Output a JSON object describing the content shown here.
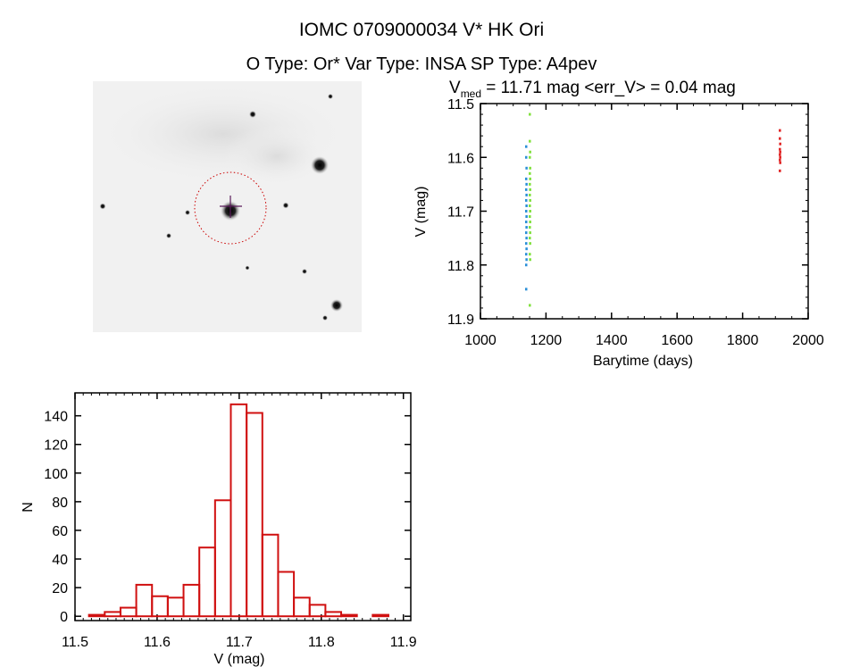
{
  "title_line1": "IOMC 0709000034   V* HK Ori",
  "title_line2": "O Type: Or*  Var Type: INSA  SP Type: A4pev",
  "chart_data": [
    {
      "type": "scatter",
      "title_main": "V",
      "title_sub": "med",
      "title_rest": " = 11.71 mag <err_V> = 0.04 mag",
      "xlabel": "Barytime (days)",
      "ylabel": "V (mag)",
      "xlim": [
        1000,
        2000
      ],
      "ylim": [
        11.5,
        11.9
      ],
      "y_inverted": false,
      "xticks": [
        "1000",
        "1200",
        "1400",
        "1600",
        "1800",
        "2000"
      ],
      "yticks": [
        "11.5",
        "11.6",
        "11.7",
        "11.8",
        "11.9"
      ],
      "series": [
        {
          "name": "blue",
          "color": "#2a8fd8",
          "points": [
            [
              1139,
              11.58
            ],
            [
              1139,
              11.6
            ],
            [
              1140,
              11.62
            ],
            [
              1139,
              11.64
            ],
            [
              1140,
              11.65
            ],
            [
              1139,
              11.66
            ],
            [
              1140,
              11.67
            ],
            [
              1139,
              11.68
            ],
            [
              1140,
              11.69
            ],
            [
              1139,
              11.7
            ],
            [
              1140,
              11.71
            ],
            [
              1139,
              11.72
            ],
            [
              1140,
              11.73
            ],
            [
              1139,
              11.74
            ],
            [
              1140,
              11.75
            ],
            [
              1139,
              11.76
            ],
            [
              1140,
              11.77
            ],
            [
              1139,
              11.78
            ],
            [
              1140,
              11.79
            ],
            [
              1139,
              11.8
            ],
            [
              1139,
              11.845
            ]
          ]
        },
        {
          "name": "green",
          "color": "#7fe03a",
          "points": [
            [
              1150,
              11.52
            ],
            [
              1150,
              11.57
            ],
            [
              1151,
              11.59
            ],
            [
              1150,
              11.6
            ],
            [
              1151,
              11.62
            ],
            [
              1150,
              11.63
            ],
            [
              1151,
              11.64
            ],
            [
              1150,
              11.65
            ],
            [
              1151,
              11.66
            ],
            [
              1150,
              11.67
            ],
            [
              1151,
              11.68
            ],
            [
              1150,
              11.69
            ],
            [
              1151,
              11.7
            ],
            [
              1150,
              11.71
            ],
            [
              1151,
              11.72
            ],
            [
              1150,
              11.73
            ],
            [
              1151,
              11.74
            ],
            [
              1150,
              11.75
            ],
            [
              1151,
              11.76
            ],
            [
              1150,
              11.78
            ],
            [
              1151,
              11.79
            ],
            [
              1150,
              11.875
            ]
          ]
        },
        {
          "name": "red",
          "color": "#e02020",
          "points": [
            [
              1913,
              11.55
            ],
            [
              1913,
              11.565
            ],
            [
              1914,
              11.575
            ],
            [
              1913,
              11.585
            ],
            [
              1914,
              11.59
            ],
            [
              1913,
              11.595
            ],
            [
              1914,
              11.6
            ],
            [
              1913,
              11.605
            ],
            [
              1914,
              11.61
            ],
            [
              1913,
              11.625
            ]
          ]
        }
      ]
    },
    {
      "type": "bar",
      "subtype": "histogram",
      "xlabel": "V (mag)",
      "ylabel": "N",
      "xlim": [
        11.5,
        11.909
      ],
      "ylim": [
        -3,
        156
      ],
      "xticks": [
        "11.5",
        "11.6",
        "11.7",
        "11.8",
        "11.9"
      ],
      "yticks": [
        "0",
        "20",
        "40",
        "60",
        "80",
        "100",
        "120",
        "140"
      ],
      "bin_start": 11.517,
      "bin_width": 0.0192,
      "values": [
        1,
        3,
        6,
        22,
        14,
        13,
        22,
        48,
        81,
        148,
        142,
        57,
        31,
        13,
        8,
        3,
        1,
        0,
        1
      ],
      "color": "#d01010"
    }
  ]
}
